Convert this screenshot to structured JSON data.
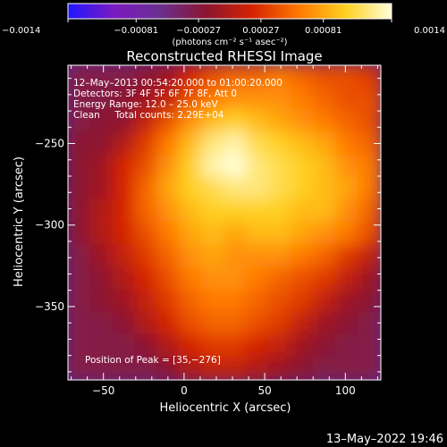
{
  "chart_data": {
    "type": "heatmap",
    "title": "Reconstructed RHESSI Image",
    "xlabel": "Heliocentric X (arcsec)",
    "ylabel": "Heliocentric Y (arcsec)",
    "xlim": [
      -72,
      122
    ],
    "ylim": [
      -395,
      -202
    ],
    "xticks": [
      -50,
      0,
      50,
      100
    ],
    "yticks": [
      -250,
      -300,
      -350
    ],
    "xtick_labels": [
      "−50",
      "0",
      "50",
      "100"
    ],
    "ytick_labels": [
      "−250",
      "−300",
      "−350"
    ],
    "colorbar": {
      "range": [
        -0.0014,
        0.0014
      ],
      "ticks": [
        -0.0014,
        -0.00081,
        -0.00027,
        0.00027,
        0.00081,
        0.0014
      ],
      "tick_labels": [
        "−0.0014",
        "−0.00081",
        "−0.00027",
        "0.00027",
        "0.00081",
        "0.0014"
      ],
      "label": "(photons cm⁻² s⁻¹ asec⁻²)",
      "colors": [
        "#1f16ff",
        "#7a1bc0",
        "#6a2f8e",
        "#8c1430",
        "#d42400",
        "#ff7a00",
        "#ffd020",
        "#ffffd8"
      ]
    },
    "info_lines": [
      "12–May–2013 00:54:20.000 to 01:00:20.000",
      "Detectors: 3F 4F 5F 6F 7F 8F, Att 0",
      "Energy Range: 12.0 – 25.0 keV",
      "Clean     Total counts: 2.29E+04"
    ],
    "peak_label": "Position of Peak = [35,−276]",
    "peak": [
      35,
      -276
    ],
    "image_grid": {
      "rows": 14,
      "cols": 14,
      "values": [
        [
          -0.0003,
          -0.0003,
          -0.0003,
          -0.0002,
          -0.0001,
          0.0002,
          0.0004,
          0.0005,
          0.0005,
          0.0006,
          0.0005,
          0.0004,
          0.0004,
          0.0003
        ],
        [
          -0.0003,
          -0.0003,
          -0.0002,
          -0.0001,
          0.0001,
          0.0004,
          0.0006,
          0.0007,
          0.0007,
          0.0007,
          0.0006,
          0.0005,
          0.0004,
          0.0004
        ],
        [
          -0.0003,
          -0.0002,
          -0.0002,
          0.0001,
          0.0004,
          0.0007,
          0.0009,
          0.001,
          0.0009,
          0.0008,
          0.0007,
          0.0006,
          0.0005,
          0.0004
        ],
        [
          -0.0002,
          -0.0002,
          0.0,
          0.0003,
          0.0006,
          0.0009,
          0.0012,
          0.0013,
          0.0011,
          0.001,
          0.0009,
          0.0008,
          0.0006,
          0.0005
        ],
        [
          -0.0002,
          -0.0001,
          0.0002,
          0.0004,
          0.0007,
          0.001,
          0.0013,
          0.0014,
          0.0012,
          0.0011,
          0.001,
          0.0009,
          0.0007,
          0.0006
        ],
        [
          -0.0002,
          -0.0001,
          0.0002,
          0.0005,
          0.0008,
          0.001,
          0.0011,
          0.0012,
          0.0012,
          0.0011,
          0.001,
          0.0009,
          0.0008,
          0.0006
        ],
        [
          -0.0002,
          0.0,
          0.0002,
          0.0005,
          0.0007,
          0.0009,
          0.001,
          0.001,
          0.001,
          0.001,
          0.0009,
          0.0009,
          0.0007,
          0.0005
        ],
        [
          -0.0002,
          0.0,
          0.0002,
          0.0004,
          0.0006,
          0.0008,
          0.0009,
          0.0008,
          0.0009,
          0.0009,
          0.0008,
          0.0007,
          0.0006,
          0.0004
        ],
        [
          -0.0003,
          -0.0001,
          0.0001,
          0.0003,
          0.0005,
          0.0007,
          0.0008,
          0.0007,
          0.0007,
          0.0007,
          0.0006,
          0.0005,
          0.0003,
          0.0001
        ],
        [
          -0.0003,
          -0.0002,
          0.0,
          0.0002,
          0.0004,
          0.0006,
          0.0007,
          0.0007,
          0.0006,
          0.0005,
          0.0004,
          0.0003,
          0.0001,
          -0.0001
        ],
        [
          -0.0003,
          -0.0002,
          -0.0001,
          0.0001,
          0.0003,
          0.0005,
          0.0006,
          0.0006,
          0.0005,
          0.0004,
          0.0003,
          0.0001,
          -0.0001,
          -0.0002
        ],
        [
          -0.0003,
          -0.0003,
          -0.0002,
          0.0,
          0.0002,
          0.0004,
          0.0005,
          0.0005,
          0.0004,
          0.0003,
          0.0001,
          -0.0001,
          -0.0002,
          -0.0003
        ],
        [
          -0.0003,
          -0.0003,
          -0.0003,
          -0.0002,
          0.0,
          0.0002,
          0.0003,
          0.0003,
          0.0002,
          0.0001,
          -0.0001,
          -0.0002,
          -0.0003,
          -0.0003
        ],
        [
          -0.0003,
          -0.0003,
          -0.0003,
          -0.0003,
          -0.0002,
          0.0,
          0.0001,
          0.0001,
          0.0,
          -0.0001,
          -0.0002,
          -0.0003,
          -0.0003,
          -0.0003
        ]
      ]
    }
  },
  "footer": {
    "timestamp": "13–May–2022 19:46"
  }
}
